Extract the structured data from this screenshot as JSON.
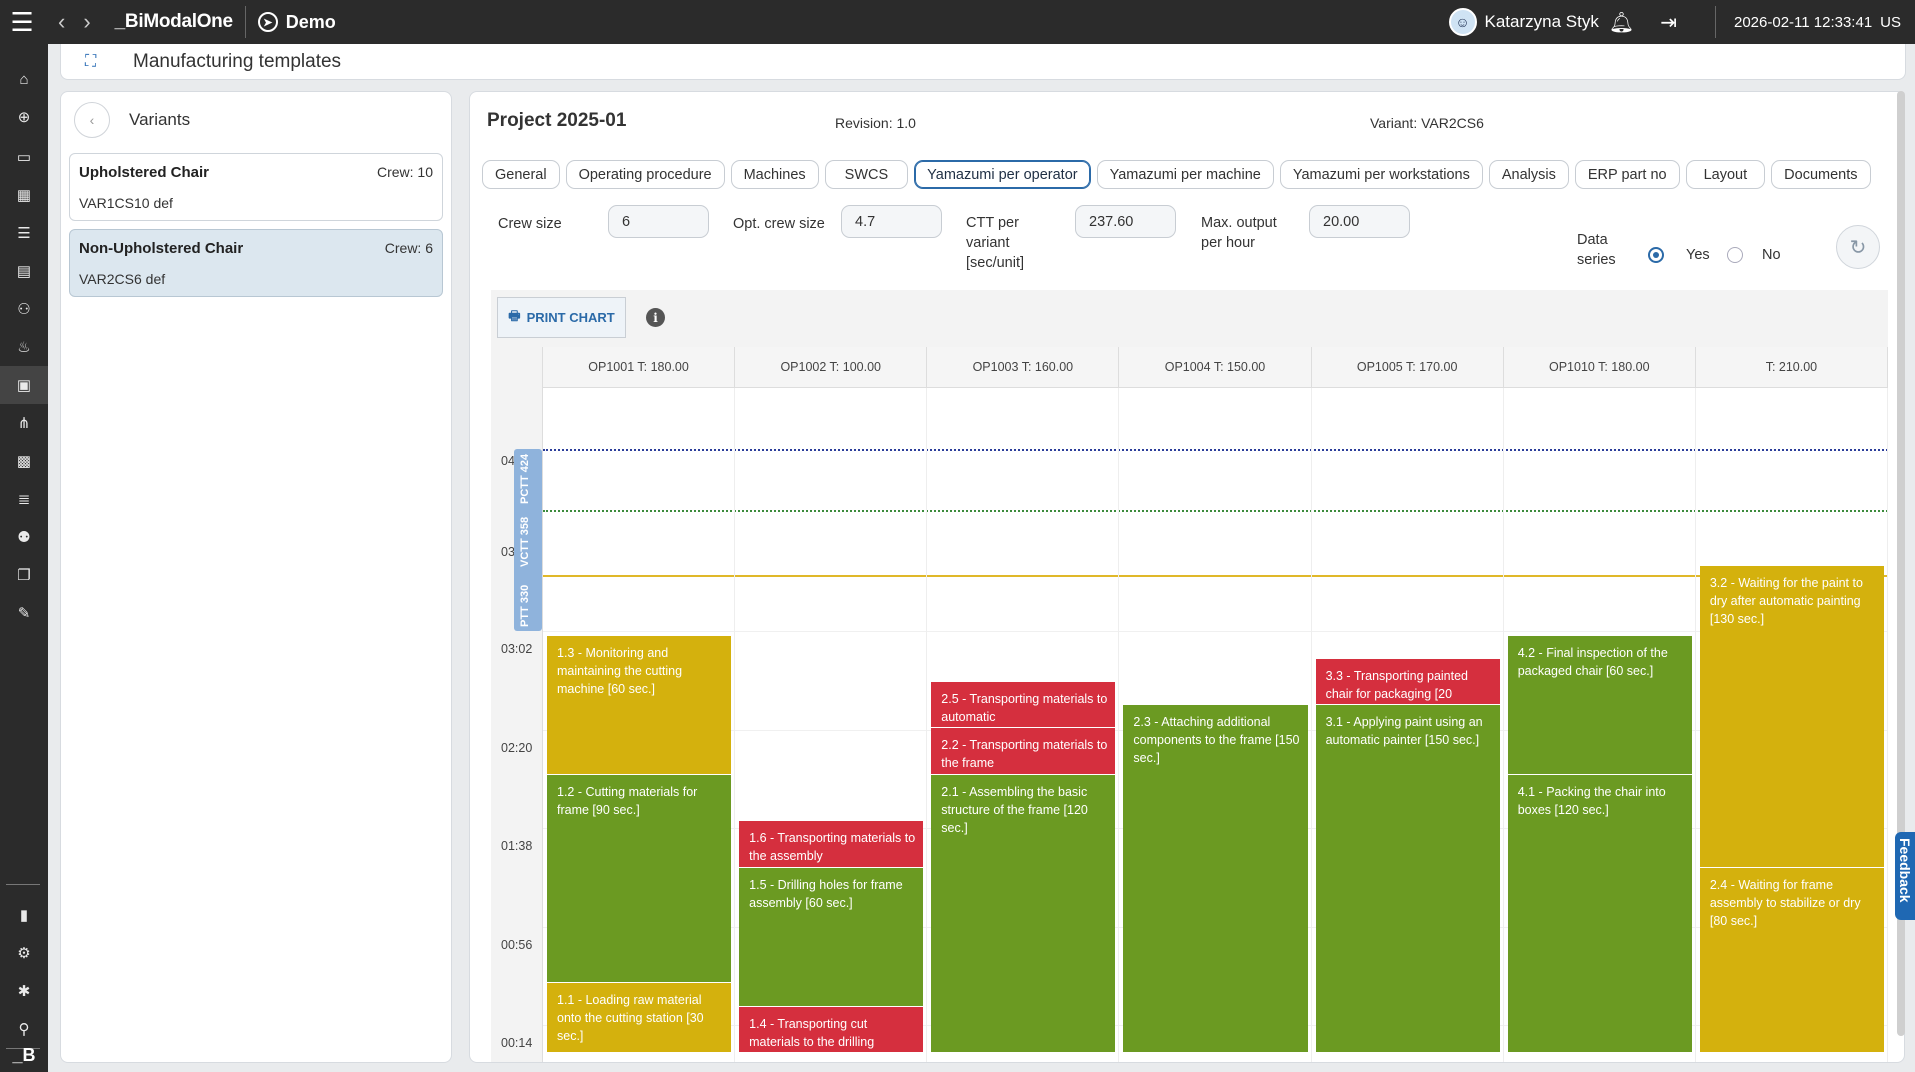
{
  "topbar": {
    "brand": "_BiModalOne",
    "workspace": "Demo",
    "user": "Katarzyna Styk",
    "datetime": "2026-02-11 12:33:41",
    "lang": "US"
  },
  "rail": {
    "icons": [
      "home-icon",
      "add-icon",
      "monitor-icon",
      "dashboard-icon",
      "gantt-icon",
      "report-icon",
      "people-icon",
      "bulb-icon",
      "templates-icon",
      "hierarchy-icon",
      "modules-icon",
      "list-icon",
      "users-icon",
      "copy-icon",
      "edit-icon",
      "book-icon",
      "settings-icon",
      "tools-icon",
      "user-settings-icon"
    ],
    "bottom_logo": "_B"
  },
  "page": {
    "title": "Manufacturing templates"
  },
  "variants": {
    "title": "Variants",
    "items": [
      {
        "name": "Upholstered Chair",
        "crew": "Crew: 10",
        "code": "VAR1CS10 def",
        "selected": false
      },
      {
        "name": "Non-Upholstered Chair",
        "crew": "Crew: 6",
        "code": "VAR2CS6 def",
        "selected": true
      }
    ]
  },
  "project": {
    "title": "Project 2025-01",
    "revision": "Revision: 1.0",
    "variant": "Variant: VAR2CS6"
  },
  "tabs": [
    {
      "label": "General",
      "active": false
    },
    {
      "label": "Operating procedure",
      "active": false
    },
    {
      "label": "Machines",
      "active": false
    },
    {
      "label": "SWCS",
      "active": false
    },
    {
      "label": "Yamazumi per operator",
      "active": true
    },
    {
      "label": "Yamazumi per machine",
      "active": false
    },
    {
      "label": "Yamazumi per workstations",
      "active": false
    },
    {
      "label": "Analysis",
      "active": false
    },
    {
      "label": "ERP part no",
      "active": false
    },
    {
      "label": "Layout",
      "active": false
    },
    {
      "label": "Documents",
      "active": false
    }
  ],
  "fields": {
    "crew_size": {
      "label": "Crew size",
      "value": "6"
    },
    "opt_crew_size": {
      "label": "Opt. crew size",
      "value": "4.7"
    },
    "ctt": {
      "label_lines": [
        "CTT per",
        "variant",
        "[sec/unit]"
      ],
      "value": "237.60"
    },
    "max_output": {
      "label_lines": [
        "Max. output",
        "per hour"
      ],
      "value": "20.00"
    },
    "data_series": {
      "label_lines": [
        "Data",
        "series"
      ],
      "yes": "Yes",
      "no": "No",
      "selected": "Yes"
    }
  },
  "chart_toolbar": {
    "print_label": "PRINT CHART"
  },
  "chart_data": {
    "type": "bar",
    "stacked": true,
    "ylabel": "",
    "y_ticks": [
      "00:14",
      "00:56",
      "01:38",
      "02:20",
      "03:02",
      "03",
      "04"
    ],
    "reference_lines": [
      {
        "label": "PCTT 424",
        "value": 424,
        "style": "dotted-blue"
      },
      {
        "label": "VCTT 358",
        "value": 358,
        "style": "dotted-green"
      },
      {
        "label": "PTT 330",
        "value": 330,
        "style": "solid-yellow"
      }
    ],
    "categories": [
      "OP1001 T: 180.00",
      "OP1002 T: 100.00",
      "OP1003 T: 160.00",
      "OP1004 T: 150.00",
      "OP1005 T: 170.00",
      "OP1010 T: 180.00",
      "T: 210.00"
    ],
    "colors": {
      "value": "#6b9a22",
      "nonvalue": "#d52f3e",
      "wait": "#d4b10d"
    },
    "segments": [
      [
        {
          "label": "1.1 - Loading raw material onto the cutting station [30 sec.]",
          "value": 30,
          "kind": "wait"
        },
        {
          "label": "1.2 - Cutting materials for frame [90 sec.]",
          "value": 90,
          "kind": "value"
        },
        {
          "label": "1.3 - Monitoring and maintaining the cutting machine [60 sec.]",
          "value": 60,
          "kind": "wait"
        }
      ],
      [
        {
          "label": "1.4 - Transporting cut materials to the drilling",
          "value": 20,
          "kind": "nonvalue"
        },
        {
          "label": "1.5 - Drilling holes for frame assembly [60 sec.]",
          "value": 60,
          "kind": "value"
        },
        {
          "label": "1.6 - Transporting materials to the assembly",
          "value": 20,
          "kind": "nonvalue"
        }
      ],
      [
        {
          "label": "2.1 - Assembling the basic structure of the frame [120 sec.]",
          "value": 120,
          "kind": "value"
        },
        {
          "label": "2.2 - Transporting materials to the frame",
          "value": 20,
          "kind": "nonvalue"
        },
        {
          "label": "2.5 - Transporting materials to automatic",
          "value": 20,
          "kind": "nonvalue"
        }
      ],
      [
        {
          "label": "2.3 - Attaching additional components to the frame [150 sec.]",
          "value": 150,
          "kind": "value"
        }
      ],
      [
        {
          "label": "3.1 - Applying paint using an automatic painter [150 sec.]",
          "value": 150,
          "kind": "value"
        },
        {
          "label": "3.3 - Transporting painted chair for packaging [20",
          "value": 20,
          "kind": "nonvalue"
        }
      ],
      [
        {
          "label": "4.1 - Packing the chair into boxes [120 sec.]",
          "value": 120,
          "kind": "value"
        },
        {
          "label": "4.2 - Final inspection of the packaged chair [60 sec.]",
          "value": 60,
          "kind": "value"
        }
      ],
      [
        {
          "label": "2.4 - Waiting for frame assembly to stabilize or dry [80 sec.]",
          "value": 80,
          "kind": "wait"
        },
        {
          "label": "3.2 - Waiting for the paint to dry after automatic painting [130 sec.]",
          "value": 130,
          "kind": "wait"
        }
      ]
    ]
  },
  "feedback": {
    "label": "Feedback"
  }
}
